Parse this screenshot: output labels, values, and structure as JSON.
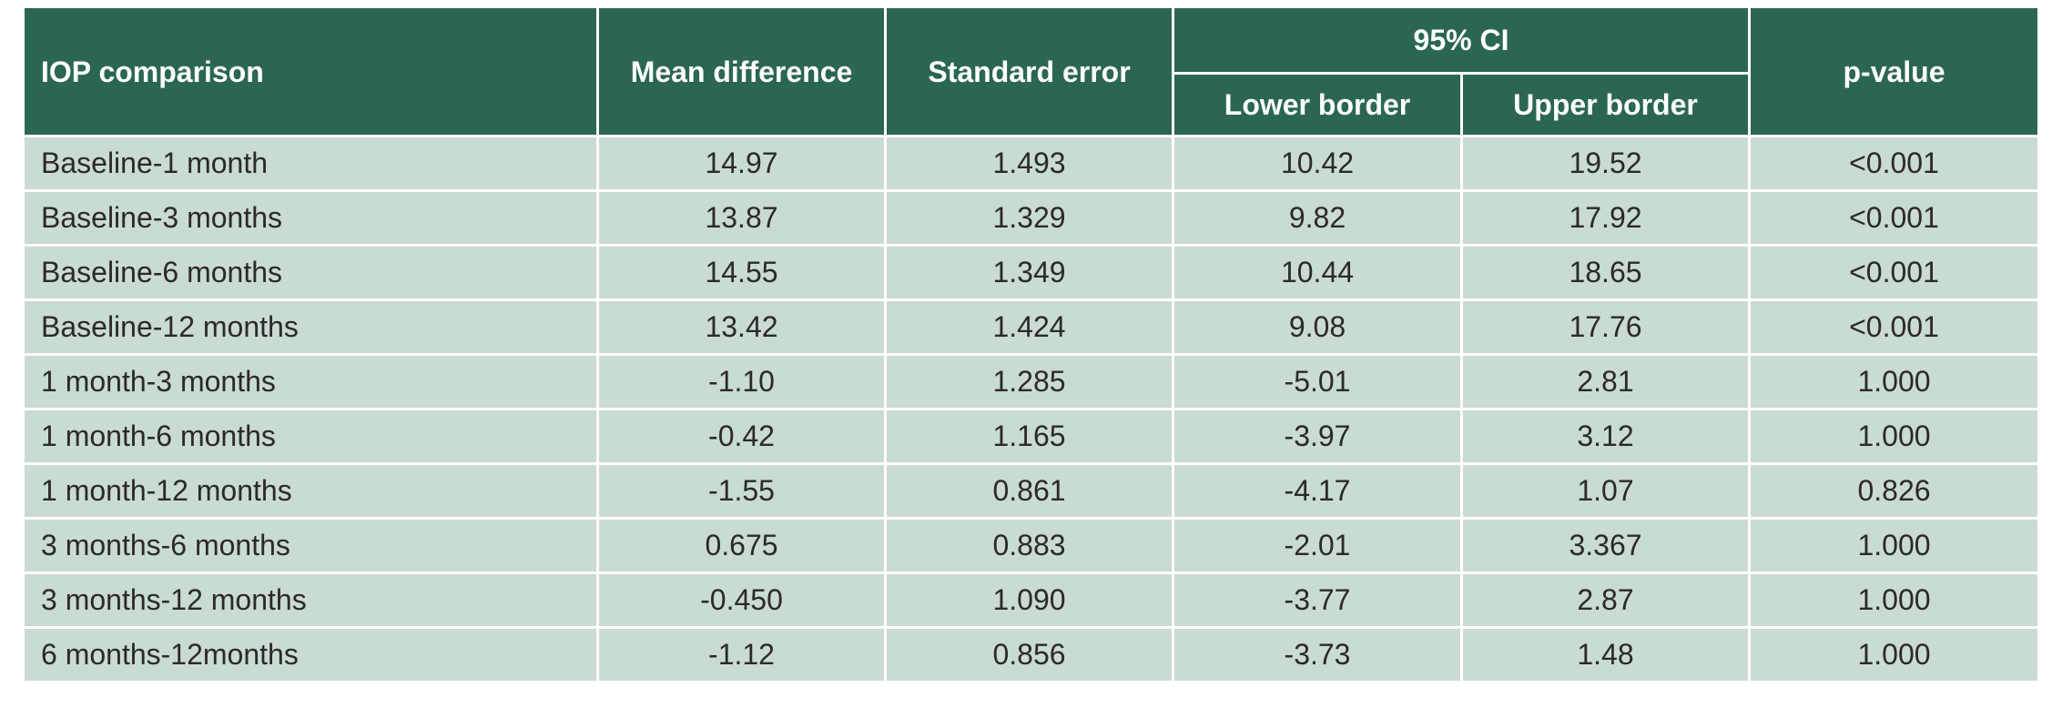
{
  "table": {
    "header": {
      "comparison": "IOP comparison",
      "mean_difference": "Mean difference",
      "standard_error": "Standard error",
      "ci": "95% CI",
      "lower": "Lower border",
      "upper": "Upper border",
      "p_value": "p-value"
    },
    "rows": [
      [
        "Baseline-1 month",
        "14.97",
        "1.493",
        "10.42",
        "19.52",
        "<0.001"
      ],
      [
        "Baseline-3 months",
        "13.87",
        "1.329",
        "9.82",
        "17.92",
        "<0.001"
      ],
      [
        "Baseline-6 months",
        "14.55",
        "1.349",
        "10.44",
        "18.65",
        "<0.001"
      ],
      [
        "Baseline-12 months",
        "13.42",
        "1.424",
        "9.08",
        "17.76",
        "<0.001"
      ],
      [
        "1 month-3 months",
        "-1.10",
        "1.285",
        "-5.01",
        "2.81",
        "1.000"
      ],
      [
        "1 month-6 months",
        "-0.42",
        "1.165",
        "-3.97",
        "3.12",
        "1.000"
      ],
      [
        "1 month-12 months",
        "-1.55",
        "0.861",
        "-4.17",
        "1.07",
        "0.826"
      ],
      [
        "3 months-6 months",
        "0.675",
        "0.883",
        "-2.01",
        "3.367",
        "1.000"
      ],
      [
        "3 months-12 months",
        "-0.450",
        "1.090",
        "-3.77",
        "2.87",
        "1.000"
      ],
      [
        "6 months-12months",
        "-1.12",
        "0.856",
        "-3.73",
        "1.48",
        "1.000"
      ]
    ]
  }
}
